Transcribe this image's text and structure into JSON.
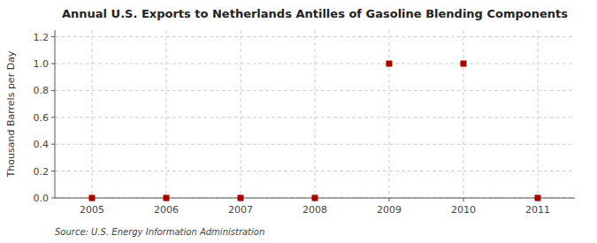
{
  "chart_data": {
    "type": "scatter",
    "title": "Annual U.S. Exports to Netherlands Antilles of Gasoline Blending Components",
    "ylabel": "Thousand Barrels per Day",
    "source": "Source: U.S. Energy Information Administration",
    "x": [
      2005,
      2006,
      2007,
      2008,
      2009,
      2010,
      2011
    ],
    "values": [
      0,
      0,
      0,
      0,
      1.0,
      1.0,
      0
    ],
    "color": "#aa0000",
    "marker": "square",
    "xlim": [
      2004.5,
      2011.5
    ],
    "ylim": [
      0.0,
      1.25
    ],
    "xticks": [
      2005,
      2006,
      2007,
      2008,
      2009,
      2010,
      2011
    ],
    "yticks": [
      {
        "value": 0.0,
        "label": "0.0"
      },
      0.2,
      0.4,
      0.6,
      0.8,
      {
        "value": 1.0,
        "label": "1.0"
      },
      1.2
    ],
    "grid": true
  }
}
